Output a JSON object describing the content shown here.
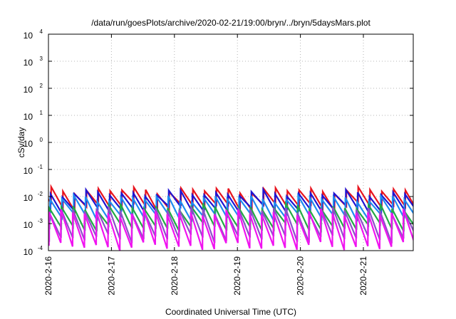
{
  "chart_data": {
    "type": "line",
    "title": "/data/run/goesPlots/archive/2020-02-21/19:00/bryn/../bryn/5daysMars.plot",
    "xlabel": "Coordinated Universal Time (UTC)",
    "ylabel": "cSv/day",
    "yscale": "log",
    "ylim": [
      0.0001,
      10000
    ],
    "y_ticks": [
      {
        "base": "10",
        "exp": "4",
        "value": 10000
      },
      {
        "base": "10",
        "exp": "3",
        "value": 1000
      },
      {
        "base": "10",
        "exp": "2",
        "value": 100
      },
      {
        "base": "10",
        "exp": "1",
        "value": 10
      },
      {
        "base": "10",
        "exp": "0",
        "value": 1
      },
      {
        "base": "10",
        "exp": "-1",
        "value": 0.1
      },
      {
        "base": "10",
        "exp": "-2",
        "value": 0.01
      },
      {
        "base": "10",
        "exp": "-3",
        "value": 0.001
      },
      {
        "base": "10",
        "exp": "-4",
        "value": 0.0001
      }
    ],
    "xlim": [
      "2020-02-16T00:00",
      "2020-02-21T19:00"
    ],
    "x_ticks": [
      {
        "label": "2020-2-16",
        "value": "2020-02-16"
      },
      {
        "label": "2020-2-17",
        "value": "2020-02-17"
      },
      {
        "label": "2020-2-18",
        "value": "2020-02-18"
      },
      {
        "label": "2020-2-19",
        "value": "2020-02-19"
      },
      {
        "label": "2020-2-20",
        "value": "2020-02-20"
      },
      {
        "label": "2020-2-21",
        "value": "2020-02-21"
      }
    ],
    "grid": true,
    "series": [
      {
        "color": "#e8141e",
        "period_hours": 4.5,
        "phase_hours": 3.5,
        "peak": 0.017,
        "trough": 0.0042
      },
      {
        "color": "#1e14d2",
        "period_hours": 4.5,
        "phase_hours": 3.7,
        "peak": 0.013,
        "trough": 0.0032
      },
      {
        "color": "#1e8cf0",
        "period_hours": 4.5,
        "phase_hours": 3.9,
        "peak": 0.0085,
        "trough": 0.0017
      },
      {
        "color": "#22aa44",
        "period_hours": 4.5,
        "phase_hours": 4.1,
        "peak": 0.004,
        "trough": 0.0007
      },
      {
        "color": "#8c50c8",
        "period_hours": 4.5,
        "phase_hours": 4.2,
        "peak": 0.0032,
        "trough": 0.00028
      },
      {
        "color": "#f014f0",
        "period_hours": 4.5,
        "phase_hours": 4.3,
        "peak": 0.0025,
        "trough": 0.00014
      }
    ]
  }
}
